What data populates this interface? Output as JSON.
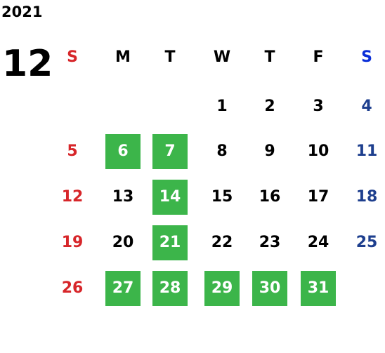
{
  "calendar": {
    "year": "2021",
    "month": "12",
    "weekdays": [
      "S",
      "M",
      "T",
      "W",
      "T",
      "F",
      "S"
    ],
    "header_colors": [
      "#d7262a",
      "#000000",
      "#000000",
      "#000000",
      "#000000",
      "#000000",
      "#0a2ed8"
    ],
    "day_colors": [
      "#d7262a",
      "#000000",
      "#000000",
      "#000000",
      "#000000",
      "#000000",
      "#1e3f8e"
    ],
    "weeks": [
      [
        null,
        null,
        null,
        1,
        2,
        3,
        4
      ],
      [
        5,
        6,
        7,
        8,
        9,
        10,
        11
      ],
      [
        12,
        13,
        14,
        15,
        16,
        17,
        18
      ],
      [
        19,
        20,
        21,
        22,
        23,
        24,
        25
      ],
      [
        26,
        27,
        28,
        29,
        30,
        31,
        null
      ]
    ],
    "highlighted": [
      6,
      7,
      14,
      21,
      27,
      28,
      29,
      30,
      31
    ],
    "highlight_color": "#3cb54a",
    "highlight_text_color": "#ffffff"
  }
}
